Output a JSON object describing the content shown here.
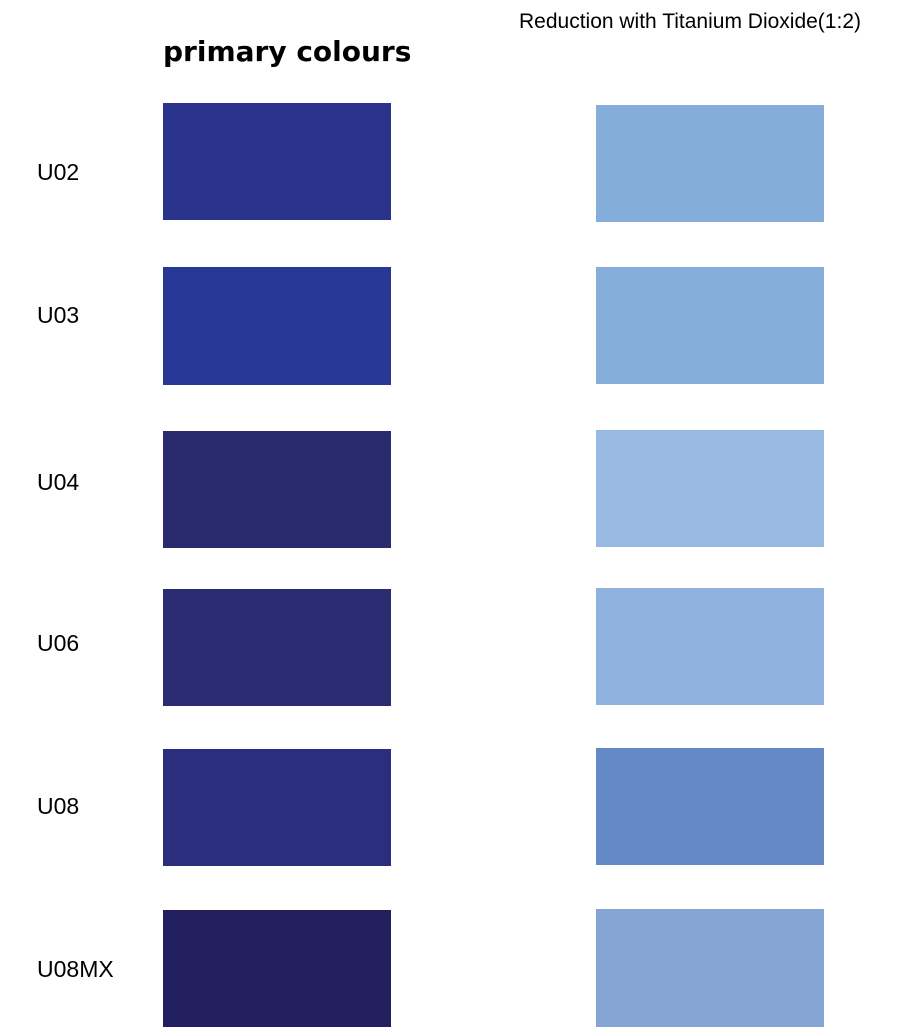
{
  "header": {
    "reduction_title": "Reduction with Titanium Dioxide(1:2)",
    "primary_title": "primary colours"
  },
  "rows": [
    {
      "code": "U02",
      "primary_color": "#2B348D",
      "reduction_color": "#85ADDA"
    },
    {
      "code": "U03",
      "primary_color": "#283896",
      "reduction_color": "#85AEDA"
    },
    {
      "code": "U04",
      "primary_color": "#292B6E",
      "reduction_color": "#97B9E2"
    },
    {
      "code": "U06",
      "primary_color": "#2A2B70",
      "reduction_color": "#8FB2DE"
    },
    {
      "code": "U08",
      "primary_color": "#2B2E7C",
      "reduction_color": "#6589C6"
    },
    {
      "code": "U08MX",
      "primary_color": "#221F5E",
      "reduction_color": "#85A5D5"
    }
  ]
}
